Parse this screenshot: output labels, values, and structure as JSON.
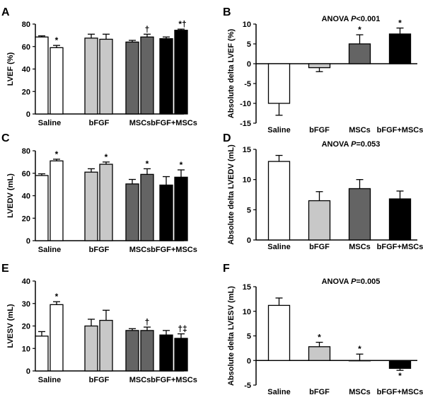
{
  "colors": {
    "Saline": "#ffffff",
    "bFGF": "#c8c8c8",
    "MSCs": "#646464",
    "bFGF+MSCs": "#000000",
    "outline": "#000000"
  },
  "chart_data": [
    {
      "panel": "A",
      "type": "bar",
      "ylabel": "LVEF (%)",
      "ylim": [
        0,
        80
      ],
      "yticks": [
        "0",
        "20",
        "40",
        "60",
        "80"
      ],
      "categories": [
        "Saline",
        "bFGF",
        "MSCs",
        "bFGF+MSCs"
      ],
      "bars": [
        {
          "group": "Saline",
          "value": 68.5,
          "err": 1,
          "sig": ""
        },
        {
          "group": "Saline",
          "value": 59,
          "err": 2,
          "sig": "*"
        },
        {
          "group": "bFGF",
          "value": 67.5,
          "err": 3.5,
          "sig": ""
        },
        {
          "group": "bFGF",
          "value": 66.5,
          "err": 4.5,
          "sig": ""
        },
        {
          "group": "MSCs",
          "value": 64,
          "err": 1.5,
          "sig": ""
        },
        {
          "group": "MSCs",
          "value": 68.5,
          "err": 2.5,
          "sig": "†"
        },
        {
          "group": "bFGF+MSCs",
          "value": 67,
          "err": 1.5,
          "sig": ""
        },
        {
          "group": "bFGF+MSCs",
          "value": 74.5,
          "err": 1,
          "sig": "*†"
        }
      ]
    },
    {
      "panel": "B",
      "type": "bar",
      "annotation": {
        "prefix": "ANOVA ",
        "p": "P",
        "suffix": "<0.001"
      },
      "ylabel": "Absolute delta LVEF (%)",
      "ylim": [
        -15,
        10
      ],
      "yticks": [
        "-15",
        "-10",
        "-5",
        "0",
        "5",
        "10"
      ],
      "categories": [
        "Saline",
        "bFGF",
        "MSCs",
        "bFGF+MSCs"
      ],
      "bars": [
        {
          "group": "Saline",
          "value": -10,
          "err": 3,
          "sig": ""
        },
        {
          "group": "bFGF",
          "value": -1,
          "err": 1,
          "sig": ""
        },
        {
          "group": "MSCs",
          "value": 5,
          "err": 2.3,
          "sig": "*"
        },
        {
          "group": "bFGF+MSCs",
          "value": 7.5,
          "err": 1.5,
          "sig": "*"
        }
      ]
    },
    {
      "panel": "C",
      "type": "bar",
      "ylabel": "LVEDV (mL)",
      "ylim": [
        0,
        80
      ],
      "yticks": [
        "0",
        "20",
        "40",
        "60",
        "80"
      ],
      "categories": [
        "Saline",
        "bFGF",
        "MSCs",
        "bFGF+MSCs"
      ],
      "bars": [
        {
          "group": "Saline",
          "value": 58,
          "err": 1.5,
          "sig": ""
        },
        {
          "group": "Saline",
          "value": 71,
          "err": 1.5,
          "sig": "*"
        },
        {
          "group": "bFGF",
          "value": 61,
          "err": 3,
          "sig": ""
        },
        {
          "group": "bFGF",
          "value": 68,
          "err": 2,
          "sig": "*"
        },
        {
          "group": "MSCs",
          "value": 50.5,
          "err": 4,
          "sig": ""
        },
        {
          "group": "MSCs",
          "value": 59,
          "err": 5,
          "sig": "*"
        },
        {
          "group": "bFGF+MSCs",
          "value": 49.5,
          "err": 7.5,
          "sig": ""
        },
        {
          "group": "bFGF+MSCs",
          "value": 56.5,
          "err": 6.5,
          "sig": "*"
        }
      ]
    },
    {
      "panel": "D",
      "type": "bar",
      "annotation": {
        "prefix": "ANOVA ",
        "p": "P",
        "suffix": "=0.053"
      },
      "ylabel": "Absolute delta LVEDV (mL)",
      "ylim": [
        0,
        15
      ],
      "yticks": [
        "0",
        "5",
        "10",
        "15"
      ],
      "categories": [
        "Saline",
        "bFGF",
        "MSCs",
        "bFGF+MSCs"
      ],
      "bars": [
        {
          "group": "Saline",
          "value": 13,
          "err": 1,
          "sig": ""
        },
        {
          "group": "bFGF",
          "value": 6.5,
          "err": 1.5,
          "sig": ""
        },
        {
          "group": "MSCs",
          "value": 8.5,
          "err": 1.5,
          "sig": ""
        },
        {
          "group": "bFGF+MSCs",
          "value": 6.8,
          "err": 1.3,
          "sig": ""
        }
      ]
    },
    {
      "panel": "E",
      "type": "bar",
      "ylabel": "LVESV (mL)",
      "ylim": [
        0,
        40
      ],
      "yticks": [
        "0",
        "10",
        "20",
        "30",
        "40"
      ],
      "categories": [
        "Saline",
        "bFGF",
        "MSCs",
        "bFGF+MSCs"
      ],
      "bars": [
        {
          "group": "Saline",
          "value": 15.5,
          "err": 2,
          "sig": ""
        },
        {
          "group": "Saline",
          "value": 29.5,
          "err": 1.3,
          "sig": "*"
        },
        {
          "group": "bFGF",
          "value": 20,
          "err": 3,
          "sig": ""
        },
        {
          "group": "bFGF",
          "value": 22.5,
          "err": 4.5,
          "sig": ""
        },
        {
          "group": "MSCs",
          "value": 18,
          "err": 0.8,
          "sig": ""
        },
        {
          "group": "MSCs",
          "value": 18,
          "err": 1.5,
          "sig": "†"
        },
        {
          "group": "bFGF+MSCs",
          "value": 16,
          "err": 2,
          "sig": ""
        },
        {
          "group": "bFGF+MSCs",
          "value": 14.5,
          "err": 2,
          "sig": "†‡"
        }
      ]
    },
    {
      "panel": "F",
      "type": "bar",
      "annotation": {
        "prefix": "ANOVA ",
        "p": "P",
        "suffix": "=0.005"
      },
      "ylabel": "Absolute delta LVESV (mL)",
      "ylim": [
        -5,
        15
      ],
      "yticks": [
        "-5",
        "0",
        "5",
        "10",
        "15"
      ],
      "categories": [
        "Saline",
        "bFGF",
        "MSCs",
        "bFGF+MSCs"
      ],
      "bars": [
        {
          "group": "Saline",
          "value": 11.2,
          "err": 1.5,
          "sig": ""
        },
        {
          "group": "bFGF",
          "value": 2.8,
          "err": 0.9,
          "sig": "*"
        },
        {
          "group": "MSCs",
          "value": 0,
          "err": 1.3,
          "sig": "*"
        },
        {
          "group": "bFGF+MSCs",
          "value": -1.6,
          "err": 0.4,
          "sig": "*"
        }
      ]
    }
  ]
}
